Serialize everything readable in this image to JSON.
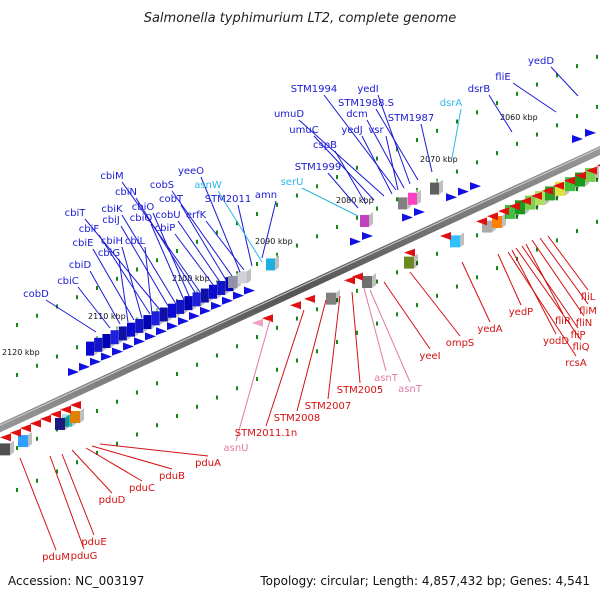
{
  "title": "Salmonella typhimurium LT2, complete genome",
  "footer": {
    "accession": "Accession: NC_003197",
    "stats": "Topology: circular; Length: 4,857,432 bp; Genes: 4,541"
  },
  "colors": {
    "forward_label": "#1a1ad4",
    "forward_rna_label": "#2ab8e8",
    "reverse_label": "#d41010",
    "reverse_rna_label": "#e07aa8",
    "backbone": "#8a8a8a",
    "tick": "#118811"
  },
  "kbp_ticks": [
    "2060 kbp",
    "2070 kbp",
    "2080 kbp",
    "2090 kbp",
    "2100 kbp",
    "2110 kbp",
    "2120 kbp"
  ],
  "forward_labels": [
    "yedD",
    "fliE",
    "dsrB",
    "dsrA",
    "STM1987",
    "STM1988.S",
    "yedI",
    "STM1994",
    "dcm",
    "umuD",
    "vsr",
    "yedJ",
    "umuC",
    "cspB",
    "STM1999",
    "serU",
    "amn",
    "STM2011",
    "erfK",
    "asnW",
    "yeeO",
    "cobS",
    "cobT",
    "cobU",
    "cbiP",
    "cbiM",
    "cbiN",
    "cbiO",
    "cbiQ",
    "cbiT",
    "cbiK",
    "cbiJ",
    "cbiF",
    "cbiH",
    "cbiL",
    "cbiE",
    "cbiG",
    "cbiD",
    "cbiC",
    "cobD"
  ],
  "reverse_labels": [
    "fliL",
    "fliM",
    "fliN",
    "fliR",
    "fliP",
    "fliQ",
    "rcsA",
    "yodD",
    "yedP",
    "yedA",
    "ompS",
    "yeeI",
    "asnT",
    "asnT",
    "STM2005",
    "STM2007",
    "STM2008",
    "STM2011.1n",
    "asnU",
    "pduA",
    "pduB",
    "pduC",
    "pduD",
    "pduE",
    "pduG",
    "pduM"
  ]
}
